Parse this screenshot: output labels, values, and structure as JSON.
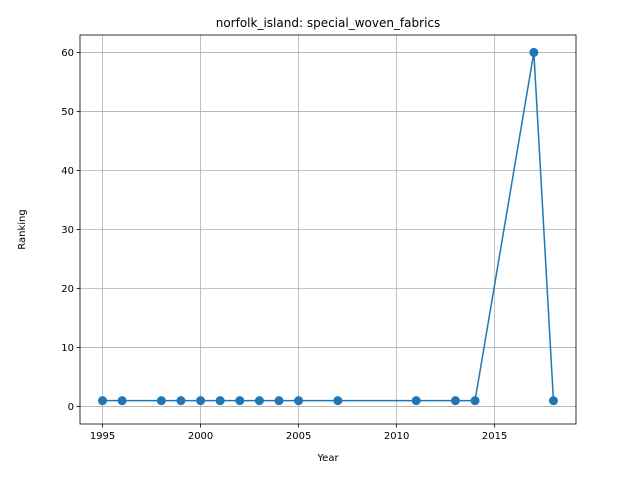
{
  "chart_data": {
    "type": "line",
    "title": "norfolk_island: special_woven_fabrics",
    "xlabel": "Year",
    "ylabel": "Ranking",
    "xlim": [
      1993.85,
      2019.15
    ],
    "ylim": [
      -2.95,
      62.95
    ],
    "xticks": [
      1995,
      2000,
      2005,
      2010,
      2015
    ],
    "yticks": [
      0,
      10,
      20,
      30,
      40,
      50,
      60
    ],
    "grid": true,
    "series": [
      {
        "color": "#1f77b4",
        "marker": "circle",
        "x": [
          1995,
          1996,
          1998,
          1999,
          2000,
          2001,
          2002,
          2003,
          2004,
          2005,
          2007,
          2011,
          2013,
          2014,
          2017,
          2018
        ],
        "y": [
          1,
          1,
          1,
          1,
          1,
          1,
          1,
          1,
          1,
          1,
          1,
          1,
          1,
          1,
          60,
          1
        ]
      }
    ]
  }
}
